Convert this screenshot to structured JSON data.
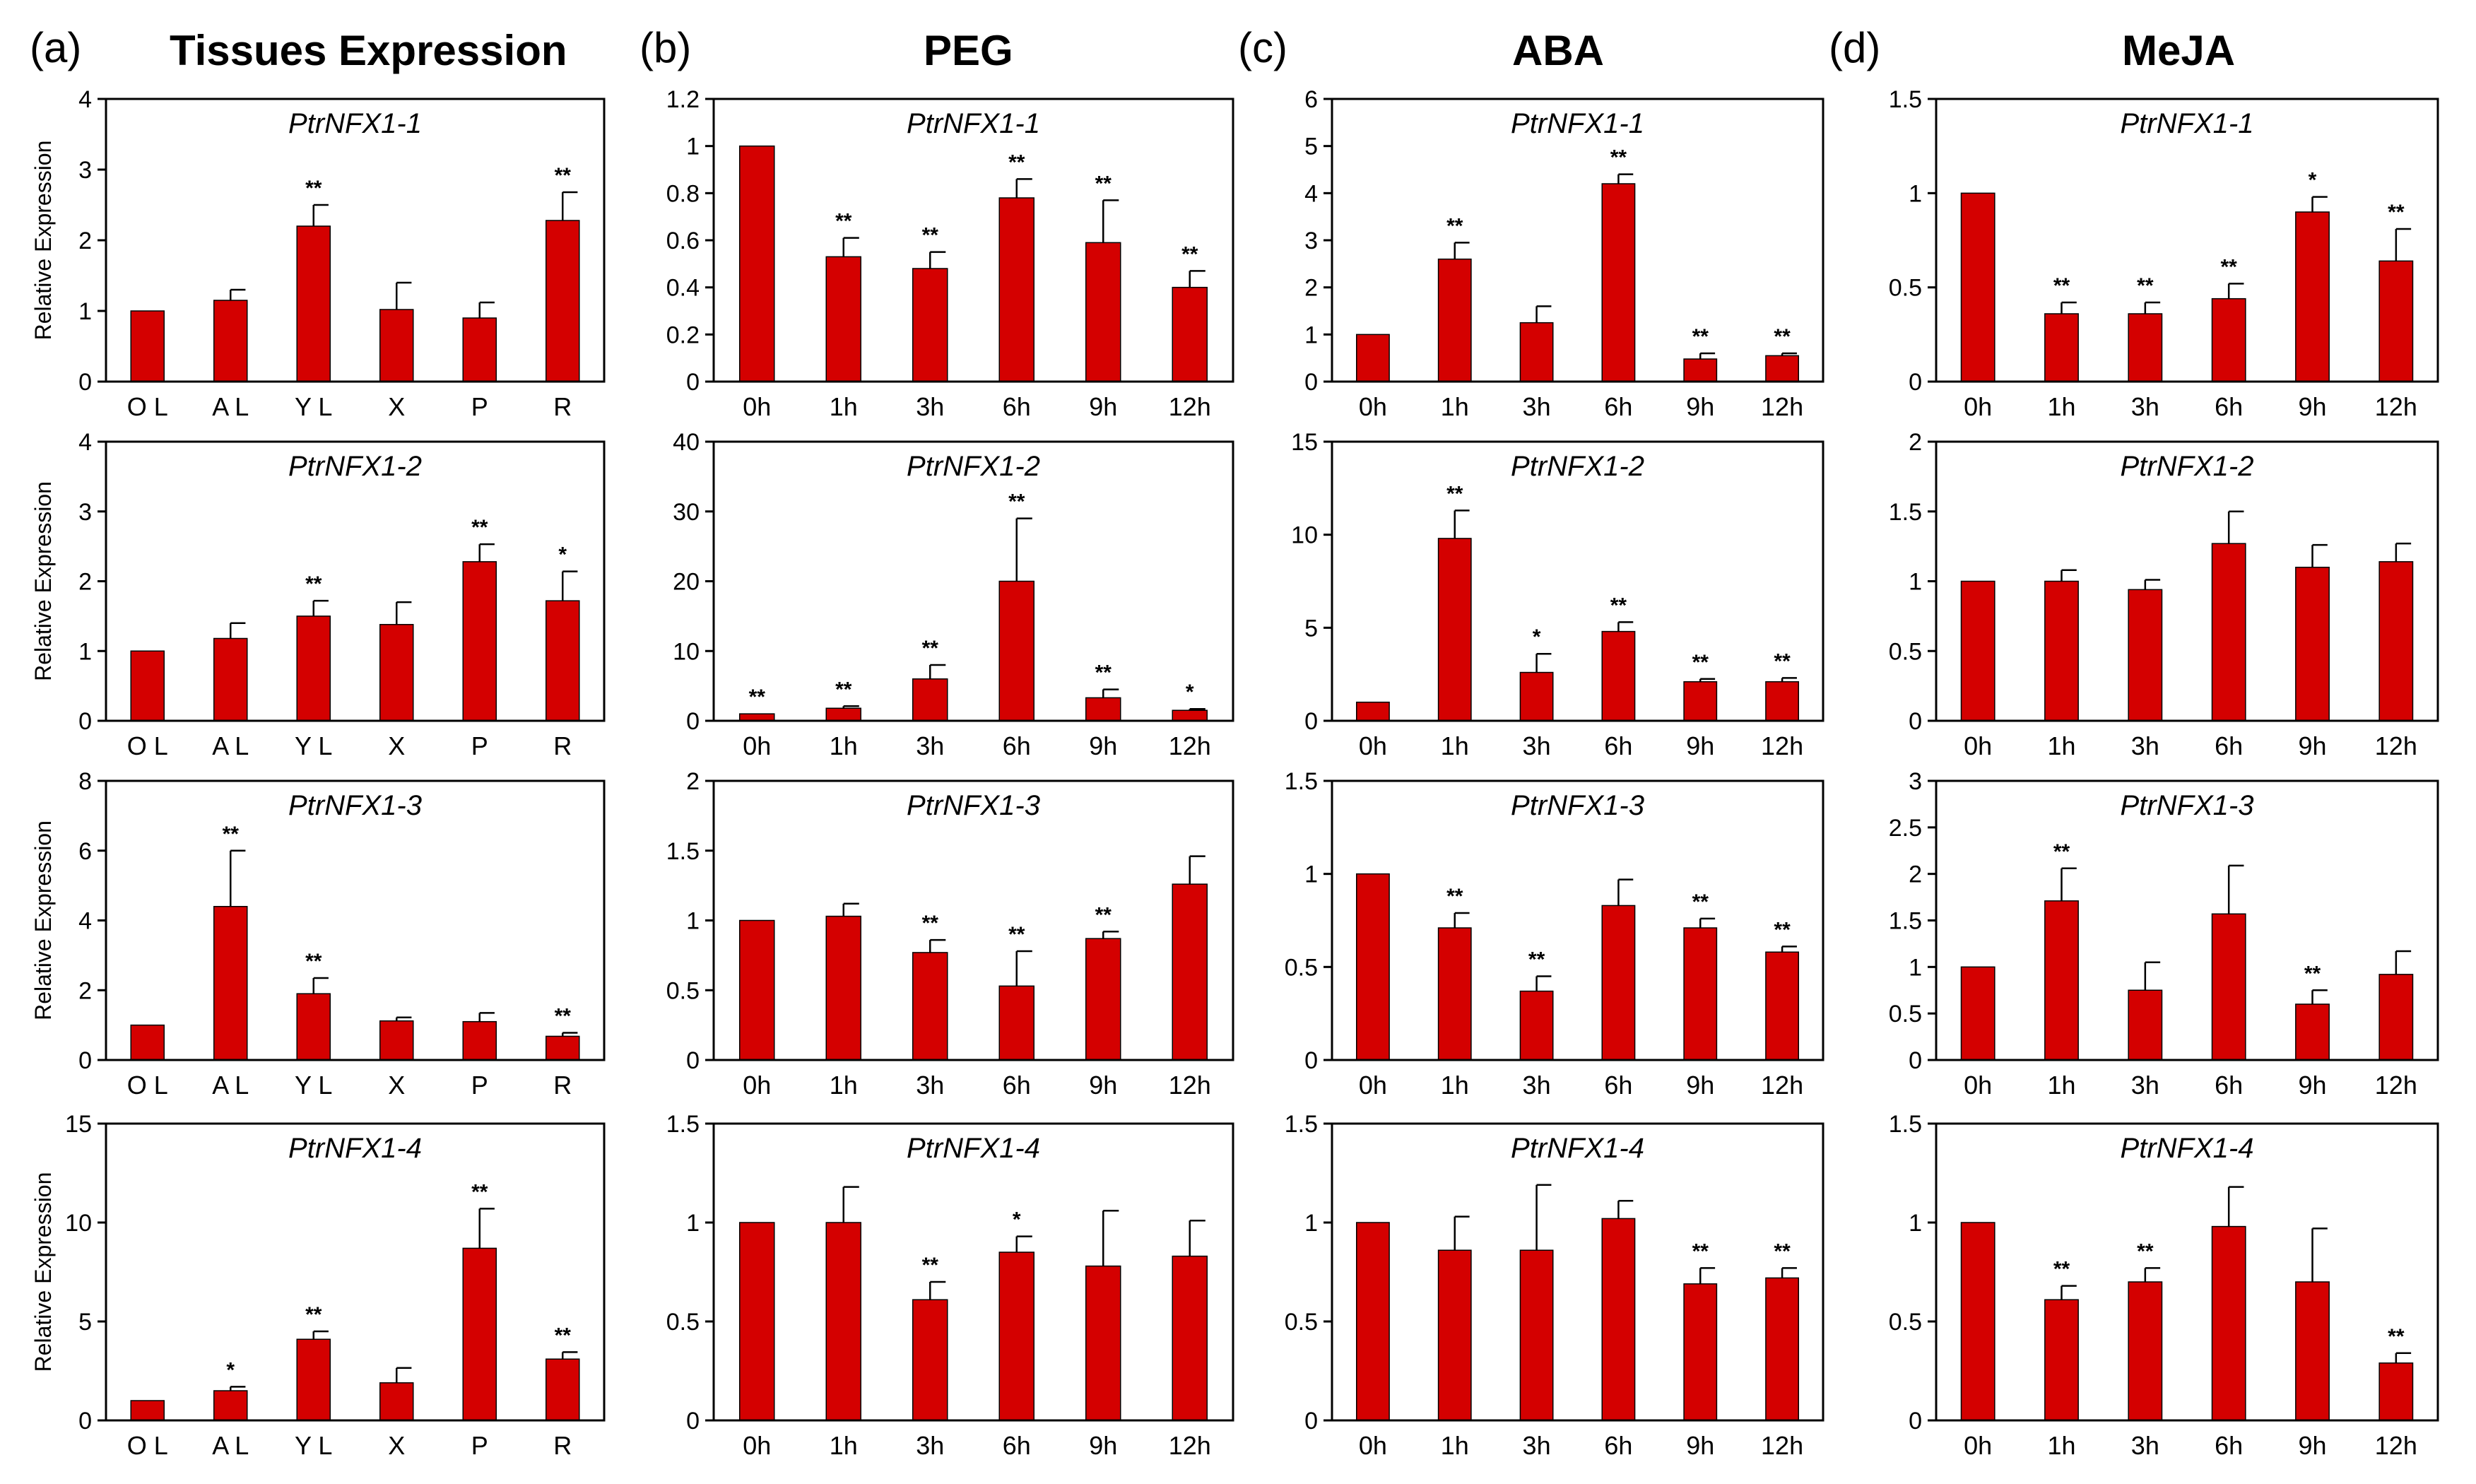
{
  "figure": {
    "columns": [
      {
        "letter": "(a)",
        "title": "Tissues Expression"
      },
      {
        "letter": "(b)",
        "title": "PEG"
      },
      {
        "letter": "(c)",
        "title": "ABA"
      },
      {
        "letter": "(d)",
        "title": "MeJA"
      }
    ],
    "y_axis_label": "Relative Expression"
  },
  "colors": {
    "bar": "#d40000",
    "axis": "#000000"
  },
  "chart_data": [
    {
      "type": "bar",
      "panel": "a",
      "title": "PtrNFX1-1",
      "ylabel": "Relative Expression",
      "categories": [
        "O L",
        "A L",
        "Y L",
        "X",
        "P",
        "R"
      ],
      "values": [
        1.0,
        1.15,
        2.2,
        1.02,
        0.9,
        2.28
      ],
      "errors": [
        0,
        0.15,
        0.3,
        0.38,
        0.22,
        0.4
      ],
      "significance": [
        "",
        "",
        "**",
        "",
        "",
        "**"
      ],
      "ylim": [
        0,
        4
      ],
      "ticks": [
        0,
        1,
        2,
        3,
        4
      ],
      "tick_labels": [
        "0",
        "1",
        "2",
        "3",
        "4"
      ]
    },
    {
      "type": "bar",
      "panel": "b",
      "title": "PtrNFX1-1",
      "ylabel": "",
      "categories": [
        "0h",
        "1h",
        "3h",
        "6h",
        "9h",
        "12h"
      ],
      "values": [
        1.0,
        0.53,
        0.48,
        0.78,
        0.59,
        0.4
      ],
      "errors": [
        0,
        0.08,
        0.07,
        0.08,
        0.18,
        0.07
      ],
      "significance": [
        "",
        "**",
        "**",
        "**",
        "**",
        "**"
      ],
      "ylim": [
        0,
        1.2
      ],
      "ticks": [
        0,
        0.2,
        0.4,
        0.6,
        0.8,
        1,
        1.2
      ],
      "tick_labels": [
        "0",
        "0.2",
        "0.4",
        "0.6",
        "0.8",
        "1",
        "1.2"
      ]
    },
    {
      "type": "bar",
      "panel": "c",
      "title": "PtrNFX1-1",
      "ylabel": "",
      "categories": [
        "0h",
        "1h",
        "3h",
        "6h",
        "9h",
        "12h"
      ],
      "values": [
        1.0,
        2.6,
        1.25,
        4.2,
        0.48,
        0.55
      ],
      "errors": [
        0,
        0.35,
        0.35,
        0.2,
        0.12,
        0.05
      ],
      "significance": [
        "",
        "**",
        "",
        "**",
        "**",
        "**"
      ],
      "ylim": [
        0,
        6
      ],
      "ticks": [
        0,
        1,
        2,
        3,
        4,
        5,
        6
      ],
      "tick_labels": [
        "0",
        "1",
        "2",
        "3",
        "4",
        "5",
        "6"
      ]
    },
    {
      "type": "bar",
      "panel": "d",
      "title": "PtrNFX1-1",
      "ylabel": "",
      "categories": [
        "0h",
        "1h",
        "3h",
        "6h",
        "9h",
        "12h"
      ],
      "values": [
        1.0,
        0.36,
        0.36,
        0.44,
        0.9,
        0.64
      ],
      "errors": [
        0,
        0.06,
        0.06,
        0.08,
        0.08,
        0.17
      ],
      "significance": [
        "",
        "**",
        "**",
        "**",
        "*",
        "**"
      ],
      "ylim": [
        0,
        1.5
      ],
      "ticks": [
        0,
        0.5,
        1,
        1.5
      ],
      "tick_labels": [
        "0",
        "0.5",
        "1",
        "1.5"
      ]
    },
    {
      "type": "bar",
      "panel": "a",
      "title": "PtrNFX1-2",
      "ylabel": "Relative Expression",
      "categories": [
        "O L",
        "A L",
        "Y L",
        "X",
        "P",
        "R"
      ],
      "values": [
        1.0,
        1.18,
        1.5,
        1.38,
        2.28,
        1.72
      ],
      "errors": [
        0,
        0.22,
        0.22,
        0.32,
        0.25,
        0.42
      ],
      "significance": [
        "",
        "",
        "**",
        "",
        "**",
        "*"
      ],
      "ylim": [
        0,
        4
      ],
      "ticks": [
        0,
        1,
        2,
        3,
        4
      ],
      "tick_labels": [
        "0",
        "1",
        "2",
        "3",
        "4"
      ]
    },
    {
      "type": "bar",
      "panel": "b",
      "title": "PtrNFX1-2",
      "ylabel": "",
      "categories": [
        "0h",
        "1h",
        "3h",
        "6h",
        "9h",
        "12h"
      ],
      "values": [
        1.0,
        1.8,
        6.0,
        20.0,
        3.3,
        1.5
      ],
      "errors": [
        0,
        0.3,
        2.0,
        9.0,
        1.2,
        0.2
      ],
      "significance": [
        "**",
        "**",
        "**",
        "**",
        "**",
        "*"
      ],
      "ylim": [
        0,
        40
      ],
      "ticks": [
        0,
        10,
        20,
        30,
        40
      ],
      "tick_labels": [
        "0",
        "10",
        "20",
        "30",
        "40"
      ]
    },
    {
      "type": "bar",
      "panel": "c",
      "title": "PtrNFX1-2",
      "ylabel": "",
      "categories": [
        "0h",
        "1h",
        "3h",
        "6h",
        "9h",
        "12h"
      ],
      "values": [
        1.0,
        9.8,
        2.6,
        4.8,
        2.1,
        2.1
      ],
      "errors": [
        0,
        1.5,
        1.0,
        0.5,
        0.15,
        0.2
      ],
      "significance": [
        "",
        "**",
        "*",
        "**",
        "**",
        "**"
      ],
      "ylim": [
        0,
        15
      ],
      "ticks": [
        0,
        5,
        10,
        15
      ],
      "tick_labels": [
        "0",
        "5",
        "10",
        "15"
      ]
    },
    {
      "type": "bar",
      "panel": "d",
      "title": "PtrNFX1-2",
      "ylabel": "",
      "categories": [
        "0h",
        "1h",
        "3h",
        "6h",
        "9h",
        "12h"
      ],
      "values": [
        1.0,
        1.0,
        0.94,
        1.27,
        1.1,
        1.14
      ],
      "errors": [
        0,
        0.08,
        0.07,
        0.23,
        0.16,
        0.13
      ],
      "significance": [
        "",
        "",
        "",
        "",
        "",
        ""
      ],
      "ylim": [
        0,
        2
      ],
      "ticks": [
        0,
        0.5,
        1,
        1.5,
        2
      ],
      "tick_labels": [
        "0",
        "0.5",
        "1",
        "1.5",
        "2"
      ]
    },
    {
      "type": "bar",
      "panel": "a",
      "title": "PtrNFX1-3",
      "ylabel": "Relative Expression",
      "categories": [
        "O L",
        "A L",
        "Y L",
        "X",
        "P",
        "R"
      ],
      "values": [
        1.0,
        4.4,
        1.9,
        1.12,
        1.1,
        0.68
      ],
      "errors": [
        0,
        1.6,
        0.45,
        0.1,
        0.25,
        0.1
      ],
      "significance": [
        "",
        "**",
        "**",
        "",
        "",
        "**"
      ],
      "ylim": [
        0,
        8
      ],
      "ticks": [
        0,
        2,
        4,
        6,
        8
      ],
      "tick_labels": [
        "0",
        "2",
        "4",
        "6",
        "8"
      ]
    },
    {
      "type": "bar",
      "panel": "b",
      "title": "PtrNFX1-3",
      "ylabel": "",
      "categories": [
        "0h",
        "1h",
        "3h",
        "6h",
        "9h",
        "12h"
      ],
      "values": [
        1.0,
        1.03,
        0.77,
        0.53,
        0.87,
        1.26
      ],
      "errors": [
        0,
        0.09,
        0.09,
        0.25,
        0.05,
        0.2
      ],
      "significance": [
        "",
        "",
        "**",
        "**",
        "**",
        ""
      ],
      "ylim": [
        0,
        2
      ],
      "ticks": [
        0,
        0.5,
        1,
        1.5,
        2
      ],
      "tick_labels": [
        "0",
        "0.5",
        "1",
        "1.5",
        "2"
      ]
    },
    {
      "type": "bar",
      "panel": "c",
      "title": "PtrNFX1-3",
      "ylabel": "",
      "categories": [
        "0h",
        "1h",
        "3h",
        "6h",
        "9h",
        "12h"
      ],
      "values": [
        1.0,
        0.71,
        0.37,
        0.83,
        0.71,
        0.58
      ],
      "errors": [
        0,
        0.08,
        0.08,
        0.14,
        0.05,
        0.03
      ],
      "significance": [
        "",
        "**",
        "**",
        "",
        "**",
        "**"
      ],
      "ylim": [
        0,
        1.5
      ],
      "ticks": [
        0,
        0.5,
        1,
        1.5
      ],
      "tick_labels": [
        "0",
        "0.5",
        "1",
        "1.5"
      ]
    },
    {
      "type": "bar",
      "panel": "d",
      "title": "PtrNFX1-3",
      "ylabel": "",
      "categories": [
        "0h",
        "1h",
        "3h",
        "6h",
        "9h",
        "12h"
      ],
      "values": [
        1.0,
        1.71,
        0.75,
        1.57,
        0.6,
        0.92
      ],
      "errors": [
        0,
        0.35,
        0.3,
        0.52,
        0.15,
        0.25
      ],
      "significance": [
        "",
        "**",
        "",
        "",
        "**",
        ""
      ],
      "ylim": [
        0,
        3
      ],
      "ticks": [
        0,
        0.5,
        1,
        1.5,
        2,
        2.5,
        3
      ],
      "tick_labels": [
        "0",
        "0.5",
        "1",
        "1.5",
        "2",
        "2.5",
        "3"
      ]
    },
    {
      "type": "bar",
      "panel": "a",
      "title": "PtrNFX1-4",
      "ylabel": "Relative Expression",
      "categories": [
        "O L",
        "A L",
        "Y L",
        "X",
        "P",
        "R"
      ],
      "values": [
        1.0,
        1.5,
        4.1,
        1.9,
        8.7,
        3.1
      ],
      "errors": [
        0,
        0.2,
        0.4,
        0.75,
        2.0,
        0.35
      ],
      "significance": [
        "",
        "*",
        "**",
        "",
        "**",
        "**"
      ],
      "ylim": [
        0,
        15
      ],
      "ticks": [
        0,
        5,
        10,
        15
      ],
      "tick_labels": [
        "0",
        "5",
        "10",
        "15"
      ]
    },
    {
      "type": "bar",
      "panel": "b",
      "title": "PtrNFX1-4",
      "ylabel": "",
      "categories": [
        "0h",
        "1h",
        "3h",
        "6h",
        "9h",
        "12h"
      ],
      "values": [
        1.0,
        1.0,
        0.61,
        0.85,
        0.78,
        0.83
      ],
      "errors": [
        0,
        0.18,
        0.09,
        0.08,
        0.28,
        0.18
      ],
      "significance": [
        "",
        "",
        "**",
        "*",
        "",
        ""
      ],
      "ylim": [
        0,
        1.5
      ],
      "ticks": [
        0,
        0.5,
        1,
        1.5
      ],
      "tick_labels": [
        "0",
        "0.5",
        "1",
        "1.5"
      ]
    },
    {
      "type": "bar",
      "panel": "c",
      "title": "PtrNFX1-4",
      "ylabel": "",
      "categories": [
        "0h",
        "1h",
        "3h",
        "6h",
        "9h",
        "12h"
      ],
      "values": [
        1.0,
        0.86,
        0.86,
        1.02,
        0.69,
        0.72
      ],
      "errors": [
        0,
        0.17,
        0.33,
        0.09,
        0.08,
        0.05
      ],
      "significance": [
        "",
        "",
        "",
        "",
        "**",
        "**"
      ],
      "ylim": [
        0,
        1.5
      ],
      "ticks": [
        0,
        0.5,
        1,
        1.5
      ],
      "tick_labels": [
        "0",
        "0.5",
        "1",
        "1.5"
      ]
    },
    {
      "type": "bar",
      "panel": "d",
      "title": "PtrNFX1-4",
      "ylabel": "",
      "categories": [
        "0h",
        "1h",
        "3h",
        "6h",
        "9h",
        "12h"
      ],
      "values": [
        1.0,
        0.61,
        0.7,
        0.98,
        0.7,
        0.29
      ],
      "errors": [
        0,
        0.07,
        0.07,
        0.2,
        0.27,
        0.05
      ],
      "significance": [
        "",
        "**",
        "**",
        "",
        "",
        "**"
      ],
      "ylim": [
        0,
        1.5
      ],
      "ticks": [
        0,
        0.5,
        1,
        1.5
      ],
      "tick_labels": [
        "0",
        "0.5",
        "1",
        "1.5"
      ]
    }
  ]
}
